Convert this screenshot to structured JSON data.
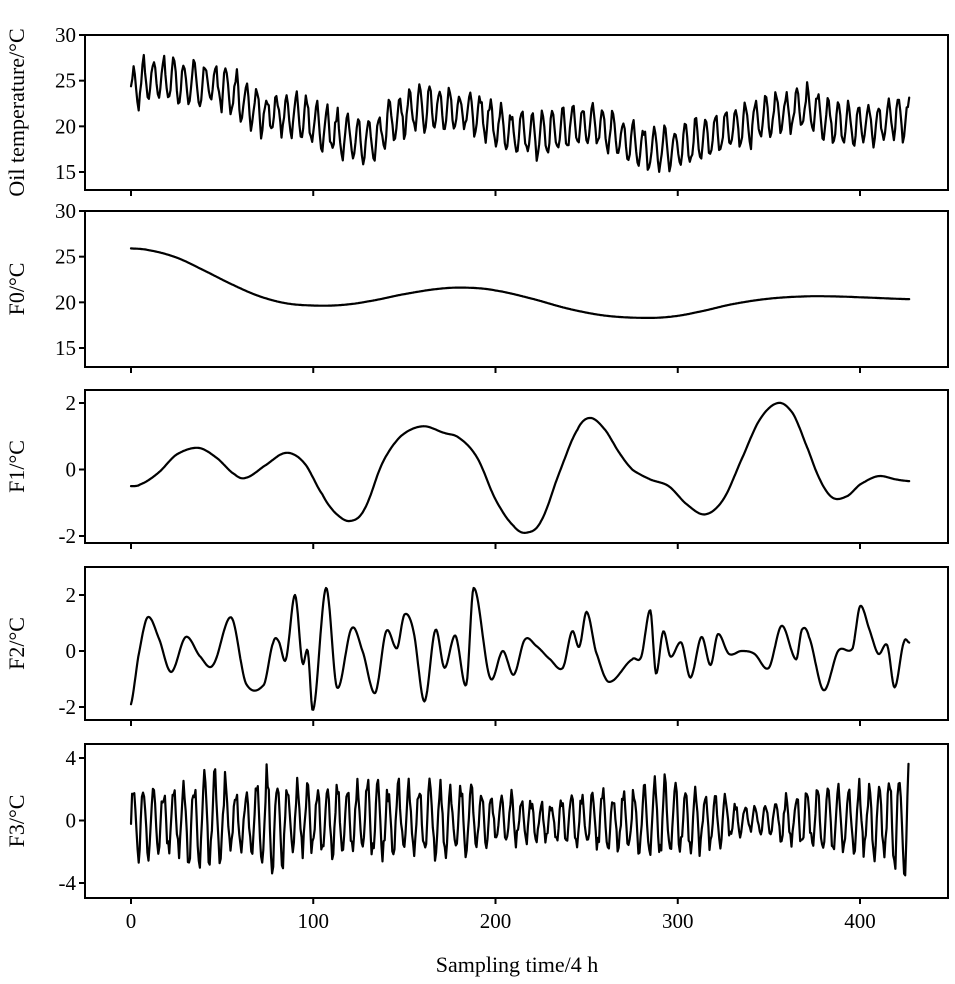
{
  "chart_data": {
    "type": "line",
    "layout": "5 vertically stacked panels sharing x-axis",
    "xlabel": "Sampling time/4 h",
    "xlim": [
      -25,
      455
    ],
    "xticks": [
      0,
      100,
      200,
      300,
      400
    ],
    "xtick_labels": [
      "0",
      "100",
      "200",
      "300",
      "400"
    ],
    "grid": false,
    "legend": "none",
    "panels": [
      {
        "id": "oil",
        "ylabel": "Oil temperature/°C",
        "ylim": [
          13,
          30
        ],
        "yticks": [
          15,
          20,
          25,
          30
        ],
        "ytick_labels": [
          "15",
          "20",
          "25",
          "30"
        ],
        "description": "Raw oil temperature, noisy daily oscillation (~4-7 °C peak-to-peak)",
        "trend": {
          "x": [
            0,
            10,
            30,
            50,
            70,
            90,
            110,
            130,
            150,
            170,
            190,
            210,
            230,
            250,
            270,
            290,
            310,
            330,
            350,
            370,
            390,
            410,
            427
          ],
          "y": [
            24,
            25.2,
            24.8,
            24.2,
            21.8,
            21,
            19.5,
            18.5,
            21.5,
            21.8,
            21.3,
            19.2,
            19.3,
            20.2,
            18.5,
            17.5,
            18.2,
            19.8,
            21,
            21.8,
            20.2,
            20.3,
            21
          ]
        },
        "oscillation_amplitude": 2.4,
        "oscillation_period": 5.6
      },
      {
        "id": "F0",
        "ylabel": "F0/°C",
        "ylim": [
          13,
          30
        ],
        "yticks": [
          15,
          20,
          25,
          30
        ],
        "ytick_labels": [
          "15",
          "20",
          "25",
          "30"
        ],
        "x": [
          0,
          10,
          25,
          40,
          55,
          70,
          85,
          100,
          115,
          130,
          150,
          170,
          185,
          200,
          220,
          240,
          260,
          280,
          295,
          310,
          330,
          350,
          370,
          385,
          400,
          427
        ],
        "y": [
          25.9,
          25.7,
          24.9,
          23.5,
          22.0,
          20.7,
          19.9,
          19.65,
          19.7,
          20.1,
          20.9,
          21.5,
          21.6,
          21.3,
          20.4,
          19.3,
          18.55,
          18.3,
          18.4,
          18.9,
          19.8,
          20.4,
          20.65,
          20.65,
          20.55,
          20.35
        ]
      },
      {
        "id": "F1",
        "ylabel": "F1/°C",
        "ylim": [
          -2.25,
          2.5
        ],
        "yticks": [
          -2,
          0,
          2
        ],
        "ytick_labels": [
          "-2",
          "0",
          "2"
        ],
        "x": [
          0,
          5,
          15,
          25,
          37,
          47,
          57,
          63,
          73,
          85,
          95,
          105,
          112,
          120,
          128,
          138,
          148,
          160,
          172,
          180,
          190,
          200,
          210,
          217,
          225,
          235,
          245,
          252,
          260,
          268,
          275,
          285,
          295,
          305,
          315,
          325,
          335,
          345,
          355,
          363,
          370,
          378,
          385,
          393,
          400,
          410,
          420,
          427
        ],
        "y": [
          -0.5,
          -0.45,
          -0.1,
          0.45,
          0.65,
          0.35,
          -0.15,
          -0.25,
          0.1,
          0.5,
          0.2,
          -0.75,
          -1.3,
          -1.55,
          -1.2,
          0.2,
          1.0,
          1.3,
          1.1,
          0.95,
          0.35,
          -0.9,
          -1.7,
          -1.9,
          -1.55,
          -0.1,
          1.2,
          1.55,
          1.2,
          0.5,
          0.0,
          -0.3,
          -0.5,
          -1.05,
          -1.35,
          -0.9,
          0.3,
          1.5,
          2.0,
          1.7,
          0.8,
          -0.3,
          -0.85,
          -0.8,
          -0.45,
          -0.2,
          -0.3,
          -0.35
        ]
      },
      {
        "id": "F2",
        "ylabel": "F2/°C",
        "ylim": [
          -2.5,
          3.0
        ],
        "yticks": [
          -2,
          0,
          2
        ],
        "ytick_labels": [
          "-2",
          "0",
          "2"
        ],
        "x": [
          0,
          4,
          9,
          15,
          22,
          30,
          38,
          45,
          55,
          63,
          73,
          78,
          81,
          85,
          90,
          94,
          97,
          100,
          107,
          113,
          121,
          127,
          134,
          140,
          146,
          150,
          155,
          161,
          167,
          172,
          178,
          184,
          188,
          197,
          204,
          210,
          216,
          222,
          230,
          237,
          242,
          246,
          250,
          255,
          262,
          275,
          280,
          285,
          288,
          292,
          296,
          302,
          307,
          313,
          318,
          322,
          328,
          335,
          342,
          350,
          357,
          365,
          368,
          372,
          380,
          388,
          396,
          400,
          405,
          410,
          415,
          419,
          424,
          427
        ],
        "y": [
          -1.9,
          -0.2,
          1.2,
          0.5,
          -0.75,
          0.5,
          -0.2,
          -0.5,
          1.2,
          -1.15,
          -1.2,
          0.3,
          0.35,
          -0.3,
          2.0,
          -0.4,
          0.0,
          -2.1,
          2.25,
          -1.3,
          0.8,
          0.0,
          -1.5,
          0.7,
          0.1,
          1.3,
          0.7,
          -1.8,
          0.75,
          -0.6,
          0.55,
          -1.2,
          2.25,
          -0.95,
          0.0,
          -0.85,
          0.4,
          0.2,
          -0.3,
          -0.6,
          0.7,
          0.15,
          1.4,
          0.0,
          -1.1,
          -0.3,
          -0.2,
          1.45,
          -0.8,
          0.7,
          -0.2,
          0.3,
          -0.95,
          0.5,
          -0.5,
          0.6,
          -0.1,
          0.0,
          -0.1,
          -0.6,
          0.9,
          -0.3,
          0.75,
          0.5,
          -1.4,
          0.0,
          0.1,
          1.6,
          0.8,
          -0.1,
          0.2,
          -1.3,
          0.3,
          0.3
        ]
      },
      {
        "id": "F3",
        "ylabel": "F3/°C",
        "ylim": [
          -5,
          5
        ],
        "yticks": [
          -4,
          0,
          4
        ],
        "ytick_labels": [
          "-4",
          "0",
          "4"
        ],
        "description": "High-frequency component, ~daily oscillation, amplitude 1-4 °C",
        "envelope": {
          "x": [
            0,
            20,
            40,
            60,
            75,
            90,
            110,
            130,
            150,
            170,
            190,
            210,
            230,
            250,
            270,
            290,
            310,
            330,
            350,
            370,
            390,
            410,
            425
          ],
          "y": [
            2.6,
            2.3,
            3.2,
            2.3,
            3.4,
            2.5,
            2.4,
            2.6,
            2.4,
            2.8,
            2.0,
            1.6,
            1.4,
            2.0,
            2.0,
            2.9,
            2.2,
            1.4,
            1.1,
            2.2,
            2.6,
            2.6,
            3.8
          ]
        },
        "oscillation_period": 5.6
      }
    ]
  }
}
